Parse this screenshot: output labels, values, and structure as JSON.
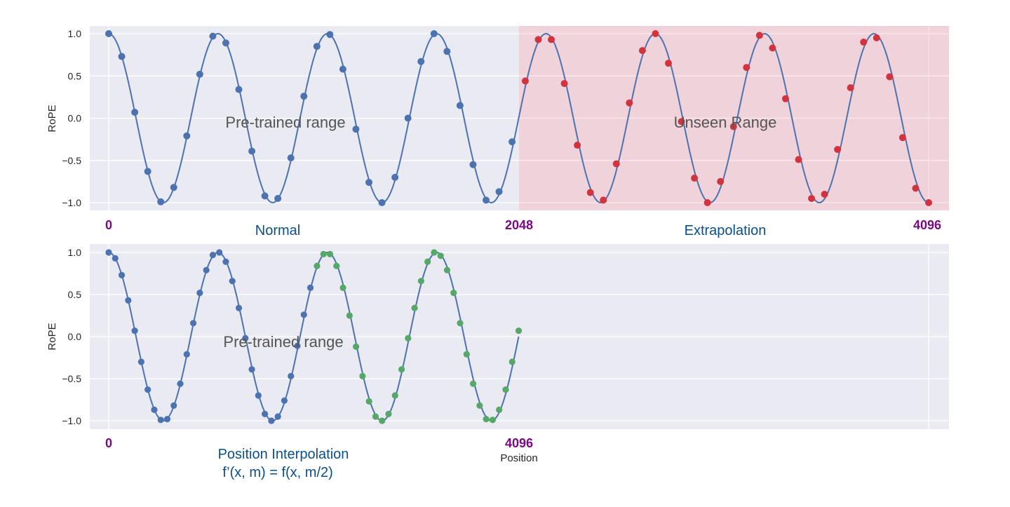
{
  "chart_data": [
    {
      "type": "line",
      "panel": "top",
      "title": "",
      "xlabel": "",
      "ylabel": "RoPE",
      "ylim": [
        -1.1,
        1.05
      ],
      "xlim": [
        0,
        4096
      ],
      "yticks": [
        "1.0",
        "0.5",
        "0.0",
        "−0.5",
        "−1.0"
      ],
      "ytick_values": [
        1.0,
        0.5,
        0.0,
        -0.5,
        -1.0
      ],
      "x_markers": [
        {
          "label": "0",
          "value": 0
        },
        {
          "label": "2048",
          "value": 2048
        },
        {
          "label": "4096",
          "value": 4096
        }
      ],
      "grid": true,
      "curve": {
        "function": "cos(2*pi*7.5*m/4096)",
        "color": "#4c72b0"
      },
      "shaded_regions": [
        {
          "x0": 0,
          "x1": 2048,
          "color": "#eaeaf2",
          "label": "Pre-trained range"
        },
        {
          "x0": 2048,
          "x1": 4096,
          "color": "#f2ccd3",
          "label": "Unseen Range"
        }
      ],
      "annotations": [
        {
          "text": "Pre-trained range",
          "x": 1100,
          "y": -0.04
        },
        {
          "text": "Unseen Range",
          "x": 3090,
          "y": -0.04
        }
      ],
      "region_labels": [
        {
          "text": "Normal",
          "center_x": 950
        },
        {
          "text": "Extrapolation",
          "center_x": 3100
        }
      ],
      "series": [
        {
          "name": "seen positions",
          "color": "#4c72b0",
          "n_points": 32,
          "x": [
            0,
            65,
            130,
            195,
            260,
            325,
            390,
            455,
            520,
            585,
            650,
            715,
            780,
            845,
            910,
            975,
            1040,
            1105,
            1170,
            1235,
            1300,
            1365,
            1430,
            1495,
            1560,
            1625,
            1690,
            1755,
            1820,
            1885,
            1950,
            2015
          ],
          "values": [
            1.0,
            0.73,
            0.07,
            -0.63,
            -0.99,
            -0.82,
            -0.21,
            0.52,
            0.97,
            0.89,
            0.34,
            -0.39,
            -0.92,
            -0.95,
            -0.47,
            0.26,
            0.85,
            0.99,
            0.58,
            -0.13,
            -0.76,
            -1.0,
            -0.7,
            0.0,
            0.67,
            1.0,
            0.79,
            0.15,
            -0.55,
            -0.97,
            -0.87,
            -0.28
          ]
        },
        {
          "name": "unseen positions",
          "color": "#d1343f",
          "n_points": 32,
          "x": [
            2081,
            2146,
            2211,
            2276,
            2341,
            2406,
            2471,
            2536,
            2601,
            2666,
            2731,
            2796,
            2861,
            2926,
            2991,
            3056,
            3121,
            3186,
            3251,
            3316,
            3381,
            3446,
            3511,
            3576,
            3641,
            3706,
            3771,
            3836,
            3901,
            3966,
            4031,
            4096
          ],
          "values": [
            0.44,
            0.93,
            0.93,
            0.41,
            -0.32,
            -0.88,
            -0.97,
            -0.54,
            0.18,
            0.8,
            1.0,
            0.65,
            -0.04,
            -0.71,
            -1.0,
            -0.75,
            -0.1,
            0.6,
            0.98,
            0.83,
            0.23,
            -0.49,
            -0.95,
            -0.9,
            -0.37,
            0.36,
            0.9,
            0.95,
            0.49,
            -0.23,
            -0.83,
            -1.0
          ]
        }
      ]
    },
    {
      "type": "line",
      "panel": "bottom",
      "title": "",
      "xlabel": "Position",
      "ylabel": "RoPE",
      "ylim": [
        -1.1,
        1.05
      ],
      "xlim": [
        0,
        4096
      ],
      "yticks": [
        "1.0",
        "0.5",
        "0.0",
        "−0.5",
        "−1.0"
      ],
      "ytick_values": [
        1.0,
        0.5,
        0.0,
        -0.5,
        -1.0
      ],
      "x_markers": [
        {
          "label": "0",
          "value": 0
        },
        {
          "label": "4096",
          "value": 4096
        }
      ],
      "grid": true,
      "curve": {
        "function": "cos(2*pi*7.5*(m/2)/4096)",
        "color": "#4c72b0"
      },
      "annotations": [
        {
          "text": "Pre-trained range",
          "x": 880,
          "y": -0.06
        }
      ],
      "region_labels": [
        {
          "text": "Position Interpolation",
          "line2": "f’(x, m) = f(x, m/2)"
        }
      ],
      "series": [
        {
          "name": "original positions",
          "color": "#4c72b0",
          "n_points": 32,
          "x": [
            0,
            65,
            130,
            195,
            260,
            325,
            390,
            455,
            520,
            585,
            650,
            715,
            780,
            845,
            910,
            975,
            1040,
            1105,
            1170,
            1235,
            1300,
            1365,
            1430,
            1495,
            1560,
            1625,
            1690,
            1755,
            1820,
            1885,
            1950,
            2015
          ],
          "values": [
            1.0,
            0.93,
            0.73,
            0.43,
            0.07,
            -0.3,
            -0.63,
            -0.87,
            -0.99,
            -0.98,
            -0.82,
            -0.56,
            -0.21,
            0.16,
            0.52,
            0.79,
            0.97,
            1.0,
            0.89,
            0.66,
            0.34,
            -0.02,
            -0.39,
            -0.7,
            -0.92,
            -1.0,
            -0.95,
            -0.76,
            -0.47,
            -0.11,
            0.26,
            0.58
          ]
        },
        {
          "name": "interpolated positions",
          "color": "#55a868",
          "n_points": 32,
          "x": [
            2081,
            2146,
            2211,
            2276,
            2341,
            2406,
            2471,
            2536,
            2601,
            2666,
            2731,
            2796,
            2861,
            2926,
            2991,
            3056,
            3121,
            3186,
            3251,
            3316,
            3381,
            3446,
            3511,
            3576,
            3641,
            3706,
            3771,
            3836,
            3901,
            3966,
            4031,
            4096
          ],
          "values": [
            0.84,
            0.98,
            0.98,
            0.84,
            0.58,
            0.25,
            -0.12,
            -0.47,
            -0.77,
            -0.95,
            -1.0,
            -0.92,
            -0.7,
            -0.39,
            -0.02,
            0.34,
            0.66,
            0.89,
            1.0,
            0.96,
            0.79,
            0.52,
            0.16,
            -0.21,
            -0.56,
            -0.82,
            -0.98,
            -0.99,
            -0.87,
            -0.63,
            -0.3,
            0.07
          ]
        }
      ]
    }
  ],
  "labels": {
    "top_annotation": "Pre-trained range",
    "top_unseen": "Unseen Range",
    "top_normal": "Normal",
    "top_extrapolation": "Extrapolation",
    "bottom_annotation": "Pre-trained range",
    "bottom_pi_line1": "Position Interpolation",
    "bottom_pi_line2": "f’(x, m) = f(x, m/2)",
    "bottom_xlabel": "Position",
    "ylabel": "RoPE",
    "mark_0": "0",
    "mark_2048": "2048",
    "mark_4096": "4096"
  },
  "colors": {
    "axes_bg": "#eaeaf2",
    "unseen_bg": "#f0d3da",
    "grid": "#ffffff",
    "curve": "#4c72b0",
    "blue_points": "#4c72b0",
    "red_points": "#d1343f",
    "green_points": "#55a868",
    "marker_text": "#7a0a82",
    "region_text": "#0b4f8a",
    "annotation_text": "#555555"
  }
}
